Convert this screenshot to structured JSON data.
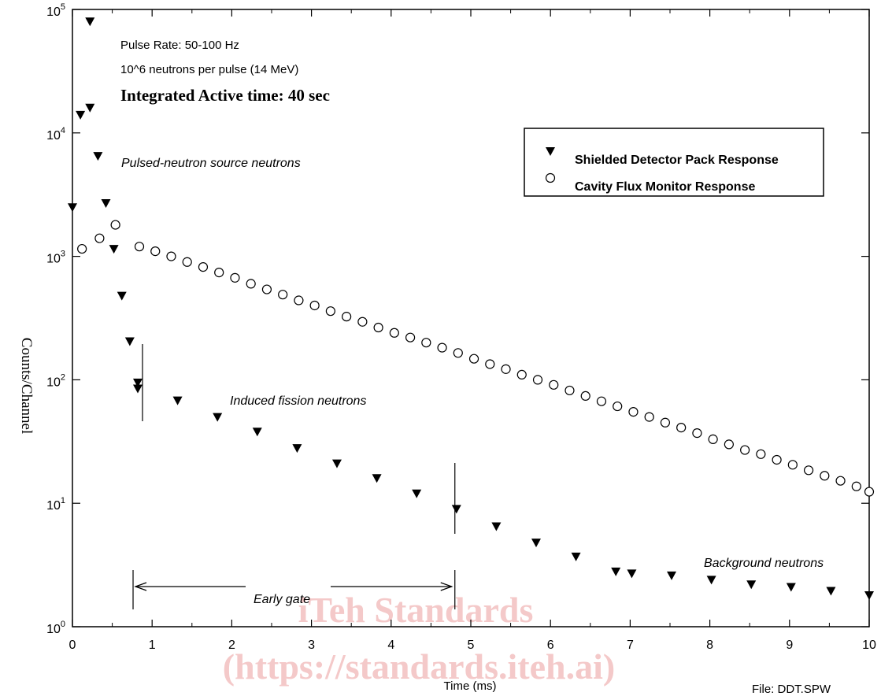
{
  "chart_data": {
    "type": "scatter",
    "ylabel": "Counts/Channel",
    "xlabel": "Time (ms)",
    "xlim": [
      0,
      10
    ],
    "ylim_log10": [
      0,
      5
    ],
    "y_scale": "log",
    "grid": false,
    "legend_position": "top-right",
    "x_ticks": [
      "0",
      "1",
      "2",
      "3",
      "4",
      "5",
      "6",
      "7",
      "8",
      "9",
      "10"
    ],
    "y_ticks": [
      {
        "base": "10",
        "exp": "0"
      },
      {
        "base": "10",
        "exp": "1"
      },
      {
        "base": "10",
        "exp": "2"
      },
      {
        "base": "10",
        "exp": "3"
      },
      {
        "base": "10",
        "exp": "4"
      },
      {
        "base": "10",
        "exp": "5"
      }
    ],
    "series": [
      {
        "name": "Shielded Detector Pack Response",
        "marker": "filled-triangle-down",
        "color": "#000000",
        "x": [
          0.0,
          0.1,
          0.22,
          0.22,
          0.32,
          0.42,
          0.52,
          0.62,
          0.72,
          0.82,
          0.82,
          1.32,
          1.82,
          2.32,
          2.82,
          3.32,
          3.82,
          4.32,
          4.82,
          5.32,
          5.82,
          6.32,
          6.82,
          7.02,
          7.52,
          8.02,
          8.52,
          9.02,
          9.52,
          10.0
        ],
        "y": [
          2500,
          14000,
          16000,
          80000,
          6500,
          2700,
          1150,
          480,
          205,
          95,
          85,
          68,
          50,
          38,
          28,
          21,
          16,
          12,
          9,
          6.5,
          4.8,
          3.7,
          2.8,
          2.7,
          2.6,
          2.4,
          2.2,
          2.1,
          1.95,
          1.8
        ]
      },
      {
        "name": "Cavity Flux Monitor Response",
        "marker": "open-circle",
        "color": "#000000",
        "x": [
          0.12,
          0.34,
          0.54,
          0.84,
          1.04,
          1.24,
          1.44,
          1.64,
          1.84,
          2.04,
          2.24,
          2.44,
          2.64,
          2.84,
          3.04,
          3.24,
          3.44,
          3.64,
          3.84,
          4.04,
          4.24,
          4.44,
          4.64,
          4.84,
          5.04,
          5.24,
          5.44,
          5.64,
          5.84,
          6.04,
          6.24,
          6.44,
          6.64,
          6.84,
          7.04,
          7.24,
          7.44,
          7.64,
          7.84,
          8.04,
          8.24,
          8.44,
          8.64,
          8.84,
          9.04,
          9.24,
          9.44,
          9.64,
          9.84,
          10.0
        ],
        "y": [
          1150,
          1400,
          1800,
          1200,
          1100,
          1000,
          900,
          820,
          740,
          670,
          600,
          540,
          490,
          440,
          400,
          360,
          325,
          295,
          265,
          240,
          220,
          200,
          182,
          165,
          148,
          134,
          122,
          110,
          100,
          91,
          82,
          74,
          67,
          61,
          55,
          50,
          45,
          41,
          37,
          33,
          30,
          27,
          25,
          22.5,
          20.5,
          18.5,
          16.7,
          15.2,
          13.7,
          12.4
        ]
      }
    ],
    "annotations": {
      "pulse_rate": "Pulse Rate:  50-100 Hz",
      "neutrons_per_pulse": "10^6 neutrons per pulse (14 MeV)",
      "integrated_time": "Integrated Active time: 40 sec",
      "source_neutrons": "Pulsed-neutron source neutrons",
      "fission_neutrons": "Induced fission neutrons",
      "background_neutrons": "Background neutrons",
      "early_gate": "Early gate",
      "file_label": "File:  DDT.SPW"
    },
    "early_gate": {
      "start": 0.85,
      "end": 4.8
    },
    "watermark": {
      "line1": "iTeh Standards",
      "line2": "(https://standards.iteh.ai)"
    }
  }
}
